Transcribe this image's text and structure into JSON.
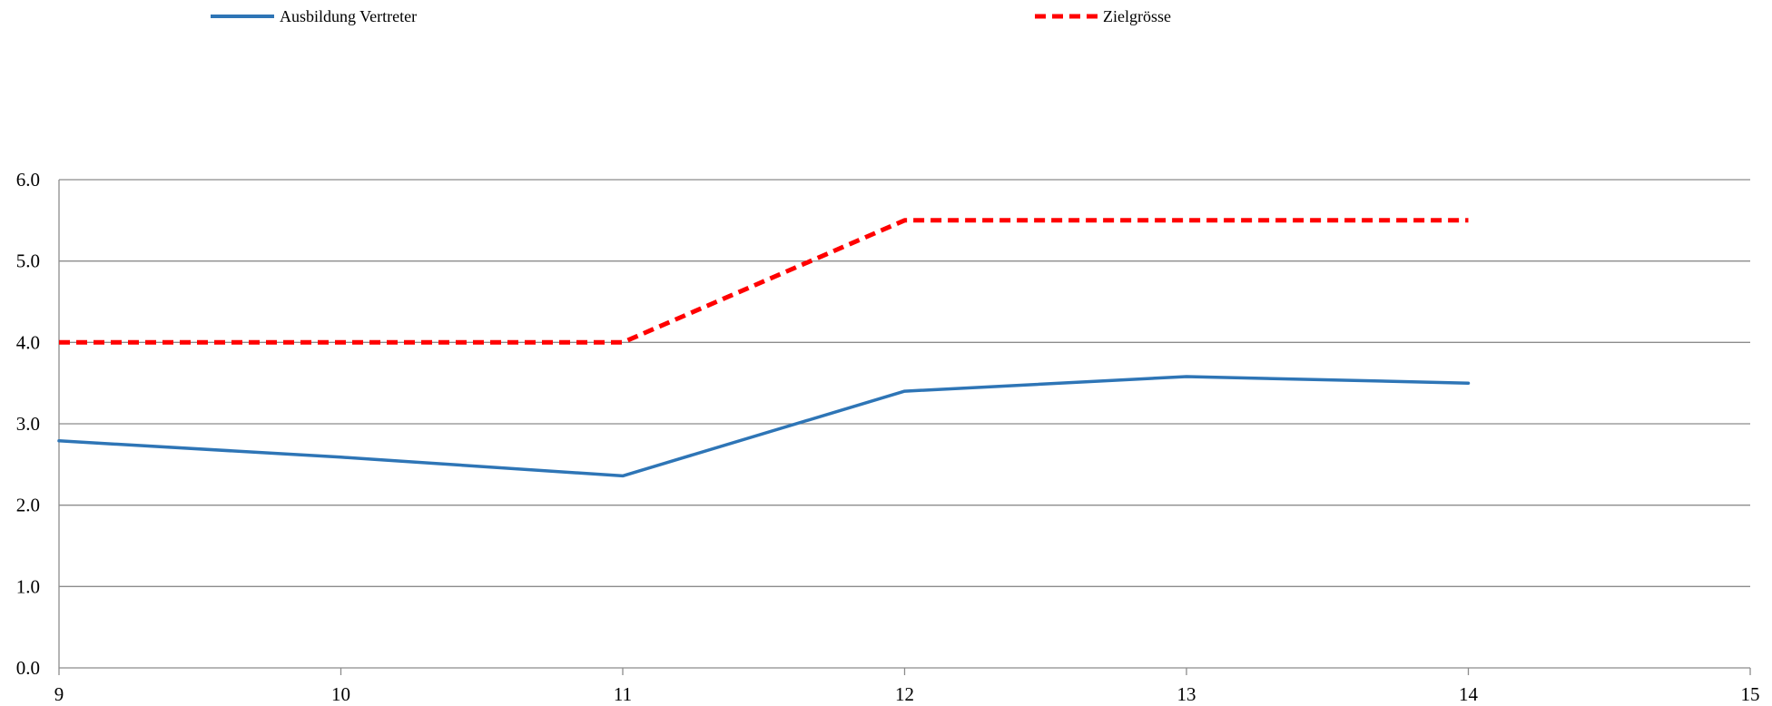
{
  "chart_data": {
    "type": "line",
    "x": [
      9,
      10,
      11,
      12,
      13,
      14
    ],
    "xlim": [
      9,
      15
    ],
    "xticks": [
      "9",
      "10",
      "11",
      "12",
      "13",
      "14",
      "15"
    ],
    "ylim": [
      0,
      6
    ],
    "yticks": [
      "0.0",
      "1.0",
      "2.0",
      "3.0",
      "4.0",
      "5.0",
      "6.0"
    ],
    "grid": "horizontal",
    "legend_position": "top",
    "series": [
      {
        "name": "Ausbildung Vertreter",
        "values": [
          2.79,
          2.59,
          2.36,
          3.4,
          3.58,
          3.5
        ],
        "color": "#2E75B6",
        "style": "solid"
      },
      {
        "name": "Zielgrösse",
        "values": [
          4.0,
          4.0,
          4.0,
          5.5,
          5.5,
          5.5
        ],
        "color": "#FF0000",
        "style": "dashed"
      }
    ]
  }
}
